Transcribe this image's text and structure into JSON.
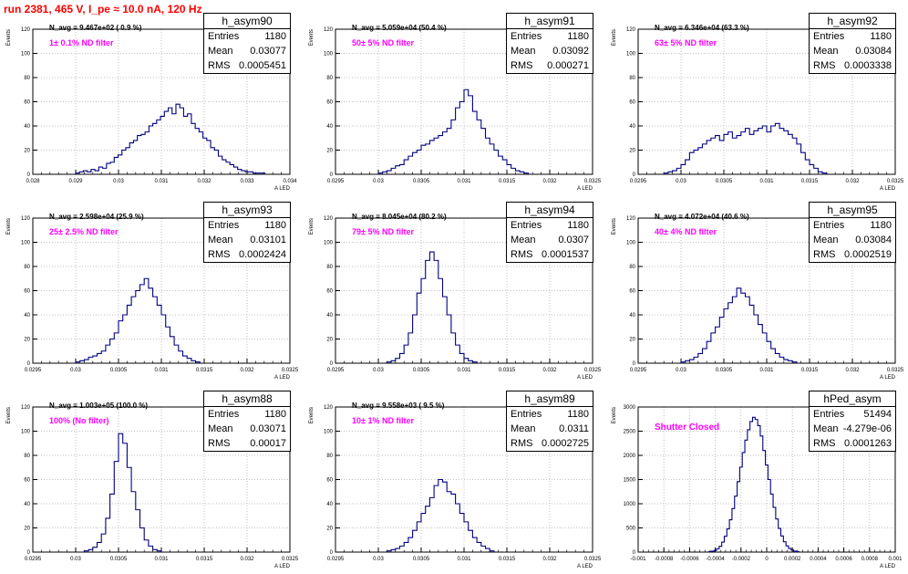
{
  "title": "run 2381,   465 V, I_pe ≈ 10.0 nA, 120 Hz",
  "colors": {
    "title": "#ff0000",
    "histogram_line": "#000080",
    "annotation": "#ff00ff",
    "grid": "#b0b0b0",
    "axis": "#000000"
  },
  "chart_data": [
    {
      "type": "histogram",
      "name": "h_asym90",
      "ylabel": "Events",
      "xlabel": "A_LED",
      "xlim": [
        0.028,
        0.034
      ],
      "ylim": [
        0,
        120
      ],
      "xticks": [
        "0.028",
        "0.029",
        "0.03",
        "0.031",
        "0.032",
        "0.033",
        "0.034"
      ],
      "yticks": [
        "0",
        "20",
        "40",
        "60",
        "80",
        "100",
        "120"
      ],
      "entries": "1180",
      "mean": "0.03077",
      "rms": "0.0005451",
      "n_avg": "N_avg = 9.467e+02 ( 0.9 %)",
      "annotation": "1± 0.1% ND filter",
      "bin_start": 0.029,
      "bin_width": 9e-05,
      "values": [
        1,
        2,
        3,
        2,
        4,
        3,
        6,
        5,
        9,
        10,
        14,
        16,
        20,
        22,
        26,
        28,
        32,
        33,
        35,
        40,
        42,
        45,
        48,
        52,
        55,
        50,
        58,
        55,
        48,
        50,
        42,
        38,
        35,
        30,
        28,
        22,
        20,
        15,
        12,
        10,
        8,
        6,
        4,
        3,
        2,
        2,
        1,
        1,
        1
      ]
    },
    {
      "type": "histogram",
      "name": "h_asym91",
      "ylabel": "Events",
      "xlabel": "A_LED",
      "xlim": [
        0.0295,
        0.0325
      ],
      "ylim": [
        0,
        120
      ],
      "xticks": [
        "0.0295",
        "0.03",
        "0.0305",
        "0.031",
        "0.0315",
        "0.032",
        "0.0325"
      ],
      "yticks": [
        "0",
        "20",
        "40",
        "60",
        "80",
        "100",
        "120"
      ],
      "entries": "1180",
      "mean": "0.03092",
      "rms": "0.000271",
      "n_avg": "N_avg = 5.059e+04 (50.4 %)",
      "annotation": "50± 5% ND filter",
      "bin_start": 0.03,
      "bin_width": 5e-05,
      "values": [
        1,
        2,
        3,
        5,
        7,
        8,
        12,
        15,
        18,
        20,
        24,
        25,
        28,
        30,
        32,
        35,
        38,
        45,
        55,
        60,
        70,
        65,
        52,
        45,
        38,
        30,
        25,
        20,
        15,
        12,
        8,
        5,
        3,
        2,
        1
      ]
    },
    {
      "type": "histogram",
      "name": "h_asym92",
      "ylabel": "Events",
      "xlabel": "A_LED",
      "xlim": [
        0.0295,
        0.0325
      ],
      "ylim": [
        0,
        120
      ],
      "xticks": [
        "0.0295",
        "0.03",
        "0.0305",
        "0.031",
        "0.0315",
        "0.032",
        "0.0325"
      ],
      "yticks": [
        "0",
        "20",
        "40",
        "60",
        "80",
        "100",
        "120"
      ],
      "entries": "1180",
      "mean": "0.03084",
      "rms": "0.0003338",
      "n_avg": "N_avg = 6.346e+04 (63.3 %)",
      "annotation": "63± 5% ND filter",
      "bin_start": 0.0298,
      "bin_width": 5e-05,
      "values": [
        1,
        2,
        3,
        5,
        8,
        12,
        18,
        20,
        22,
        25,
        28,
        30,
        32,
        28,
        33,
        35,
        30,
        32,
        35,
        38,
        33,
        36,
        38,
        40,
        35,
        40,
        42,
        38,
        36,
        33,
        30,
        25,
        18,
        12,
        8,
        5,
        2,
        1
      ]
    },
    {
      "type": "histogram",
      "name": "h_asym93",
      "ylabel": "Events",
      "xlabel": "A_LED",
      "xlim": [
        0.0295,
        0.0325
      ],
      "ylim": [
        0,
        120
      ],
      "xticks": [
        "0.0295",
        "0.03",
        "0.0305",
        "0.031",
        "0.0315",
        "0.032",
        "0.0325"
      ],
      "yticks": [
        "0",
        "20",
        "40",
        "60",
        "80",
        "100",
        "120"
      ],
      "entries": "1180",
      "mean": "0.03101",
      "rms": "0.0002424",
      "n_avg": "N_avg = 2.598e+04 (25.9 %)",
      "annotation": "25± 2.5% ND filter",
      "bin_start": 0.03,
      "bin_width": 5e-05,
      "values": [
        1,
        2,
        3,
        5,
        6,
        8,
        10,
        15,
        20,
        25,
        35,
        40,
        48,
        55,
        60,
        65,
        70,
        62,
        55,
        48,
        40,
        30,
        22,
        15,
        10,
        6,
        4,
        2,
        1
      ]
    },
    {
      "type": "histogram",
      "name": "h_asym94",
      "ylabel": "Events",
      "xlabel": "A_LED",
      "xlim": [
        0.0295,
        0.0325
      ],
      "ylim": [
        0,
        120
      ],
      "xticks": [
        "0.0295",
        "0.03",
        "0.0305",
        "0.031",
        "0.0315",
        "0.032",
        "0.0325"
      ],
      "yticks": [
        "0",
        "20",
        "40",
        "60",
        "80",
        "100",
        "120"
      ],
      "entries": "1180",
      "mean": "0.0307",
      "rms": "0.0001537",
      "n_avg": "N_avg = 8.045e+04 (80.2 %)",
      "annotation": "79± 5% ND filter",
      "bin_start": 0.0301,
      "bin_width": 5e-05,
      "values": [
        1,
        2,
        4,
        8,
        15,
        25,
        40,
        58,
        70,
        85,
        92,
        85,
        70,
        55,
        40,
        25,
        15,
        8,
        4,
        2,
        1
      ]
    },
    {
      "type": "histogram",
      "name": "h_asym95",
      "ylabel": "Events",
      "xlabel": "A_LED",
      "xlim": [
        0.0295,
        0.0325
      ],
      "ylim": [
        0,
        120
      ],
      "xticks": [
        "0.0295",
        "0.03",
        "0.0305",
        "0.031",
        "0.0315",
        "0.032",
        "0.0325"
      ],
      "yticks": [
        "0",
        "20",
        "40",
        "60",
        "80",
        "100",
        "120"
      ],
      "entries": "1180",
      "mean": "0.03084",
      "rms": "0.0002519",
      "n_avg": "N_avg = 4.072e+04 (40.6 %)",
      "annotation": "40± 4% ND filter",
      "bin_start": 0.03,
      "bin_width": 5e-05,
      "values": [
        1,
        2,
        3,
        5,
        8,
        12,
        18,
        25,
        30,
        38,
        45,
        50,
        55,
        62,
        58,
        55,
        48,
        40,
        32,
        25,
        18,
        12,
        8,
        5,
        3,
        2,
        1
      ]
    },
    {
      "type": "histogram",
      "name": "h_asym88",
      "ylabel": "Events",
      "xlabel": "A_LED",
      "xlim": [
        0.0295,
        0.0325
      ],
      "ylim": [
        0,
        120
      ],
      "xticks": [
        "0.0295",
        "0.03",
        "0.0305",
        "0.031",
        "0.0315",
        "0.032",
        "0.0325"
      ],
      "yticks": [
        "0",
        "20",
        "40",
        "60",
        "80",
        "100",
        "120"
      ],
      "entries": "1180",
      "mean": "0.03071",
      "rms": "0.00017",
      "n_avg": "N_avg = 1.003e+05 (100.0 %)",
      "annotation": "100% (No filter)",
      "bin_start": 0.0301,
      "bin_width": 5e-05,
      "values": [
        1,
        2,
        4,
        8,
        15,
        28,
        48,
        75,
        98,
        90,
        70,
        50,
        35,
        20,
        10,
        5,
        2,
        1
      ]
    },
    {
      "type": "histogram",
      "name": "h_asym89",
      "ylabel": "Events",
      "xlabel": "A_LED",
      "xlim": [
        0.0295,
        0.0325
      ],
      "ylim": [
        0,
        120
      ],
      "xticks": [
        "0.0295",
        "0.03",
        "0.0305",
        "0.031",
        "0.0315",
        "0.032",
        "0.0325"
      ],
      "yticks": [
        "0",
        "20",
        "40",
        "60",
        "80",
        "100",
        "120"
      ],
      "entries": "1180",
      "mean": "0.0311",
      "rms": "0.0002725",
      "n_avg": "N_avg = 9.558e+03 ( 9.5 %)",
      "annotation": "10± 1% ND filter",
      "bin_start": 0.0301,
      "bin_width": 5e-05,
      "values": [
        1,
        2,
        3,
        5,
        8,
        12,
        18,
        25,
        32,
        38,
        45,
        55,
        60,
        58,
        50,
        48,
        40,
        32,
        25,
        18,
        12,
        8,
        5,
        3,
        1
      ]
    },
    {
      "type": "histogram",
      "name": "hPed_asym",
      "ylabel": "Events",
      "xlabel": "A_LED",
      "xlim": [
        -0.001,
        0.001
      ],
      "ylim": [
        0,
        3500
      ],
      "xticks": [
        "-0.001",
        "-0.0008",
        "-0.0006",
        "-0.0004",
        "-0.0002",
        "0",
        "0.0002",
        "0.0004",
        "0.0006",
        "0.0008",
        "0.001"
      ],
      "yticks": [
        "0",
        "500",
        "1000",
        "1500",
        "2000",
        "2500",
        "3000"
      ],
      "entries": "51494",
      "mean": "-4.279e-06",
      "rms": "0.0001263",
      "n_avg": "",
      "annotation": "Shutter Closed",
      "bin_start": -0.00045,
      "bin_width": 2e-05,
      "values": [
        10,
        20,
        40,
        80,
        140,
        240,
        380,
        560,
        780,
        1050,
        1350,
        1700,
        2050,
        2400,
        2700,
        2950,
        3150,
        3250,
        3200,
        3050,
        2800,
        2450,
        2100,
        1750,
        1400,
        1080,
        800,
        570,
        390,
        250,
        150,
        90,
        50,
        25,
        12
      ]
    }
  ]
}
